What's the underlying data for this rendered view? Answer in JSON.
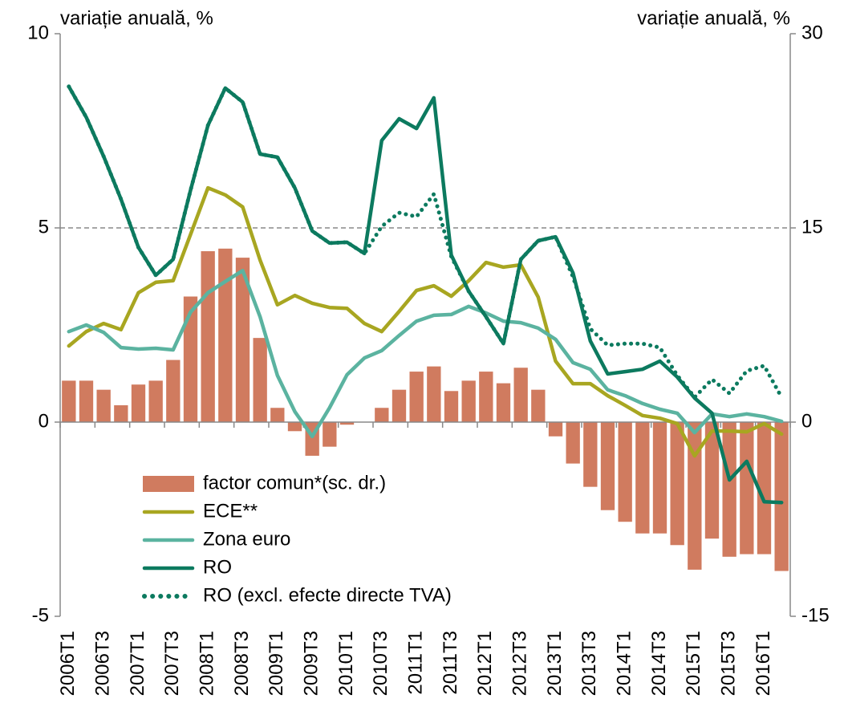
{
  "chart_data": {
    "type": "combo",
    "ylabel": "variație anuală, %",
    "y2label": "variație anuală, %",
    "categories": [
      "2006T1",
      null,
      "2006T3",
      null,
      "2007T1",
      null,
      "2007T3",
      null,
      "2008T1",
      null,
      "2008T3",
      null,
      "2009T1",
      null,
      "2009T3",
      null,
      "2010T1",
      null,
      "2010T3",
      null,
      "2011T1",
      null,
      "2011T3",
      null,
      "2012T1",
      null,
      "2012T3",
      null,
      "2013T1",
      null,
      "2013T3",
      null,
      "2014T1",
      null,
      "2014T3",
      null,
      "2015T1",
      null,
      "2015T3",
      null,
      "2016T1",
      null
    ],
    "ylim": [
      -5,
      10
    ],
    "yticks": [
      -5,
      0,
      5,
      10
    ],
    "y2lim": [
      -15,
      30
    ],
    "y2ticks": [
      -15,
      0,
      15,
      30
    ],
    "grid": true,
    "series": [
      {
        "name": "factor comun*(sc. dr.)",
        "type": "bar",
        "axis": "y2",
        "color": "#d07b5f",
        "values": [
          3.2,
          3.2,
          2.5,
          1.3,
          2.9,
          3.2,
          4.8,
          9.7,
          13.2,
          13.4,
          12.7,
          6.5,
          1.1,
          -0.7,
          -2.6,
          -1.9,
          -0.2,
          0,
          1.1,
          2.5,
          3.9,
          4.3,
          2.4,
          3.2,
          3.9,
          3.0,
          4.2,
          2.5,
          -1.1,
          -3.2,
          -5.0,
          -6.8,
          -7.7,
          -8.6,
          -8.6,
          -9.5,
          -11.4,
          -9.0,
          -10.4,
          -10.2,
          -10.2,
          -11.5
        ]
      },
      {
        "name": "ECE**",
        "type": "line",
        "color": "#a8a621",
        "values": [
          1.96,
          2.33,
          2.54,
          2.38,
          3.33,
          3.6,
          3.64,
          4.83,
          6.03,
          5.85,
          5.54,
          4.17,
          3.02,
          3.26,
          3.06,
          2.95,
          2.93,
          2.54,
          2.33,
          2.85,
          3.39,
          3.51,
          3.24,
          3.64,
          4.11,
          3.99,
          4.05,
          3.22,
          1.57,
          0.99,
          0.99,
          0.68,
          0.43,
          0.17,
          0.1,
          -0.04,
          -0.87,
          -0.23,
          -0.23,
          -0.25,
          -0.04,
          -0.31
        ]
      },
      {
        "name": "Zona euro",
        "type": "line",
        "color": "#5bb3a0",
        "values": [
          2.33,
          2.5,
          2.31,
          1.92,
          1.88,
          1.9,
          1.86,
          2.83,
          3.33,
          3.62,
          3.9,
          2.71,
          1.2,
          0.27,
          -0.37,
          0.37,
          1.22,
          1.65,
          1.84,
          2.23,
          2.6,
          2.75,
          2.77,
          2.98,
          2.81,
          2.6,
          2.56,
          2.42,
          2.13,
          1.53,
          1.36,
          0.83,
          0.68,
          0.48,
          0.33,
          0.23,
          -0.27,
          0.21,
          0.14,
          0.21,
          0.14,
          0.02
        ]
      },
      {
        "name": "RO",
        "type": "line",
        "color": "#0c7a5f",
        "values": [
          8.64,
          7.85,
          6.84,
          5.74,
          4.5,
          3.78,
          4.19,
          5.97,
          7.64,
          8.6,
          8.24,
          6.9,
          6.82,
          6.03,
          4.92,
          4.61,
          4.63,
          4.34,
          7.25,
          7.81,
          7.56,
          8.35,
          4.3,
          3.37,
          2.71,
          2.02,
          4.19,
          4.67,
          4.77,
          3.84,
          2.09,
          1.24,
          1.3,
          1.36,
          1.57,
          1.16,
          0.62,
          0.23,
          -1.49,
          -1.01,
          -2.05,
          -2.07
        ]
      },
      {
        "name": "RO (excl. efecte directe TVA)",
        "type": "line",
        "style": "dotted",
        "color": "#0c7a5f",
        "values": [
          8.64,
          7.85,
          6.84,
          5.74,
          4.5,
          3.78,
          4.19,
          5.97,
          7.64,
          8.6,
          8.24,
          6.9,
          6.82,
          6.03,
          4.92,
          4.61,
          4.63,
          4.34,
          5.04,
          5.39,
          5.29,
          5.87,
          4.26,
          3.37,
          2.71,
          2.02,
          4.19,
          4.67,
          4.77,
          3.74,
          2.4,
          1.98,
          2.02,
          2.02,
          1.92,
          1.2,
          0.64,
          1.1,
          0.74,
          1.32,
          1.45,
          0.64
        ]
      }
    ]
  }
}
